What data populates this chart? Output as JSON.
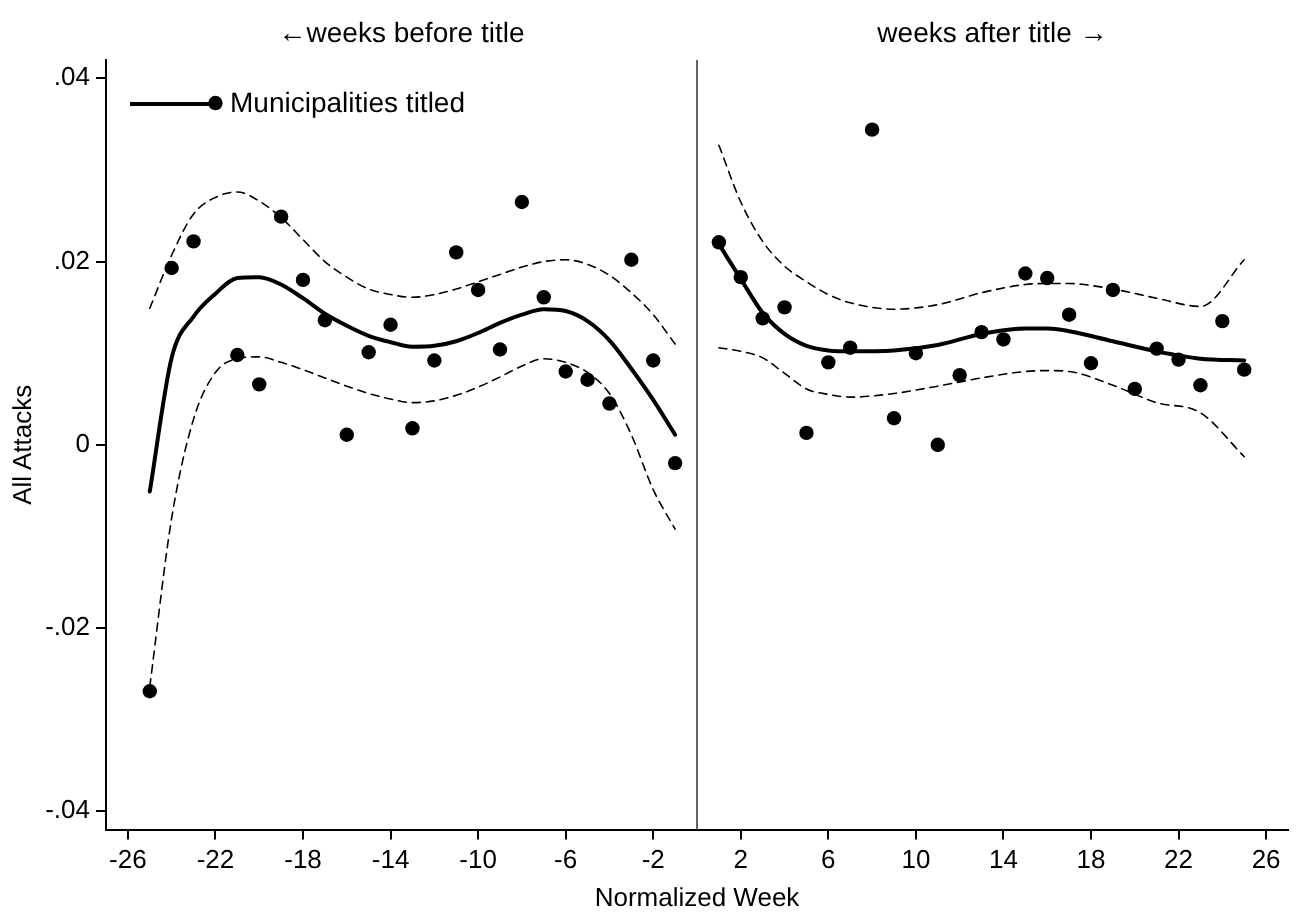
{
  "chart_data": {
    "type": "scatter",
    "xlabel": "Normalized Week",
    "ylabel": "All Attacks",
    "annotations": [
      "←weeks before title",
      "weeks after title →"
    ],
    "xlim": [
      -27,
      27
    ],
    "xticks": [
      -26,
      -22,
      -18,
      -14,
      -10,
      -6,
      -2,
      2,
      6,
      10,
      14,
      18,
      22,
      26
    ],
    "ylim": [
      -0.042,
      0.042
    ],
    "yticks": [
      {
        "value": -0.04,
        "label": "-.04"
      },
      {
        "value": -0.02,
        "label": "-.02"
      },
      0,
      {
        "value": 0.02,
        "label": ".02"
      },
      {
        "value": 0.04,
        "label": ".04"
      }
    ],
    "grid": false,
    "legend": "top left",
    "ref_lines": [
      {
        "axis": "x",
        "value": 0,
        "color": "#666666"
      }
    ],
    "x": [
      -25,
      -24,
      -23,
      -22,
      -21,
      -20,
      -19,
      -18,
      -17,
      -16,
      -15,
      -14,
      -13,
      -12,
      -11,
      -10,
      -9,
      -8,
      -7,
      -6,
      -5,
      -4,
      -3,
      -2,
      -1,
      1,
      2,
      3,
      4,
      5,
      6,
      7,
      8,
      9,
      10,
      11,
      12,
      13,
      14,
      15,
      16,
      17,
      18,
      19,
      20,
      21,
      22,
      23,
      24,
      25
    ],
    "series": [
      {
        "color": "#000000",
        "marker": "circle",
        "values": [
          -0.0269,
          0.0193,
          0.0222,
          0.0373,
          0.0098,
          0.0066,
          0.0249,
          0.018,
          0.0136,
          0.0011,
          0.0101,
          0.0131,
          0.0018,
          0.0092,
          0.021,
          0.0169,
          0.0104,
          0.0265,
          0.0161,
          0.008,
          0.0071,
          0.0045,
          0.0202,
          0.0092,
          -0.002,
          0.0221,
          0.0183,
          0.0138,
          0.015,
          0.0013,
          0.009,
          0.0106,
          0.0344,
          0.0029,
          0.01,
          0,
          0.0076,
          0.0123,
          0.0115,
          0.0187,
          0.0182,
          0.0142,
          0.0089,
          0.0169,
          0.0061,
          0.0105,
          0.0093,
          0.0065,
          0.0135,
          0.0082
        ]
      },
      {
        "type": "line",
        "name": "Municipalities titled",
        "color": "#000000",
        "line_style": "solid",
        "marker": "none",
        "x": [
          -25,
          -24,
          -23,
          -22,
          -21,
          -20,
          -19,
          -18,
          -17,
          -16,
          -15,
          -14,
          -13,
          -12,
          -11,
          -10,
          -9,
          -8,
          -7,
          -6,
          -5,
          -4,
          -3,
          -2,
          -1
        ],
        "values": [
          -0.0051,
          0.0095,
          0.014,
          0.0165,
          0.0182,
          0.0183,
          0.0175,
          0.016,
          0.0143,
          0.013,
          0.0119,
          0.0112,
          0.0107,
          0.0108,
          0.0113,
          0.0122,
          0.0133,
          0.0142,
          0.0148,
          0.0146,
          0.0135,
          0.0114,
          0.0083,
          0.0049,
          0.0011
        ]
      },
      {
        "type": "line",
        "color": "#000000",
        "line_style": "dashed",
        "marker": "none",
        "x": [
          -25,
          -24,
          -23,
          -22,
          -21,
          -20,
          -19,
          -18,
          -17,
          -16,
          -15,
          -14,
          -13,
          -12,
          -11,
          -10,
          -9,
          -8,
          -7,
          -6,
          -5,
          -4,
          -3,
          -2,
          -1
        ],
        "values": [
          -0.0264,
          -0.008,
          0.0028,
          0.0079,
          0.0094,
          0.0096,
          0.009,
          0.0082,
          0.0073,
          0.0064,
          0.0056,
          0.005,
          0.0046,
          0.0048,
          0.0054,
          0.0063,
          0.0074,
          0.0086,
          0.0094,
          0.009,
          0.0079,
          0.0056,
          0.0011,
          -0.0049,
          -0.0092
        ]
      },
      {
        "type": "line",
        "color": "#000000",
        "line_style": "dashed",
        "marker": "none",
        "x": [
          -25,
          -24,
          -23,
          -22,
          -21,
          -20,
          -19,
          -18,
          -17,
          -16,
          -15,
          -14,
          -13,
          -12,
          -11,
          -10,
          -9,
          -8,
          -7,
          -6,
          -5,
          -4,
          -3,
          -2,
          -1
        ],
        "values": [
          0.0149,
          0.0207,
          0.0252,
          0.027,
          0.0276,
          0.0266,
          0.0248,
          0.0224,
          0.02,
          0.0183,
          0.017,
          0.0164,
          0.0161,
          0.0164,
          0.017,
          0.0178,
          0.0186,
          0.0194,
          0.02,
          0.0202,
          0.0197,
          0.0185,
          0.0166,
          0.0142,
          0.011
        ]
      },
      {
        "type": "line",
        "color": "#000000",
        "line_style": "solid",
        "marker": "none",
        "x": [
          1,
          2,
          3,
          4,
          5,
          6,
          7,
          9,
          11,
          13,
          15,
          16,
          17,
          19,
          21,
          23,
          25
        ],
        "values": [
          0.0219,
          0.0181,
          0.0144,
          0.0121,
          0.0108,
          0.0103,
          0.0102,
          0.0103,
          0.0109,
          0.0121,
          0.0127,
          0.0127,
          0.0124,
          0.0113,
          0.0102,
          0.0094,
          0.0092
        ]
      },
      {
        "type": "line",
        "color": "#000000",
        "line_style": "dashed",
        "marker": "none",
        "x": [
          1,
          2,
          3,
          4,
          5,
          6,
          7,
          9,
          11,
          13,
          15,
          16,
          17,
          19,
          21,
          23,
          25
        ],
        "values": [
          0.0106,
          0.0102,
          0.0095,
          0.0078,
          0.0061,
          0.0055,
          0.0052,
          0.0056,
          0.0064,
          0.0073,
          0.008,
          0.0081,
          0.008,
          0.0065,
          0.0046,
          0.0035,
          -0.0013
        ]
      },
      {
        "type": "line",
        "color": "#000000",
        "line_style": "dashed",
        "marker": "none",
        "x": [
          1,
          2,
          3,
          4,
          5,
          6,
          7,
          9,
          11,
          13,
          15,
          16,
          17,
          19,
          21,
          23,
          25
        ],
        "values": [
          0.0327,
          0.0265,
          0.0222,
          0.0195,
          0.0178,
          0.0164,
          0.0155,
          0.0148,
          0.0153,
          0.0166,
          0.0175,
          0.0176,
          0.0176,
          0.017,
          0.016,
          0.0151,
          0.0202
        ]
      }
    ]
  }
}
